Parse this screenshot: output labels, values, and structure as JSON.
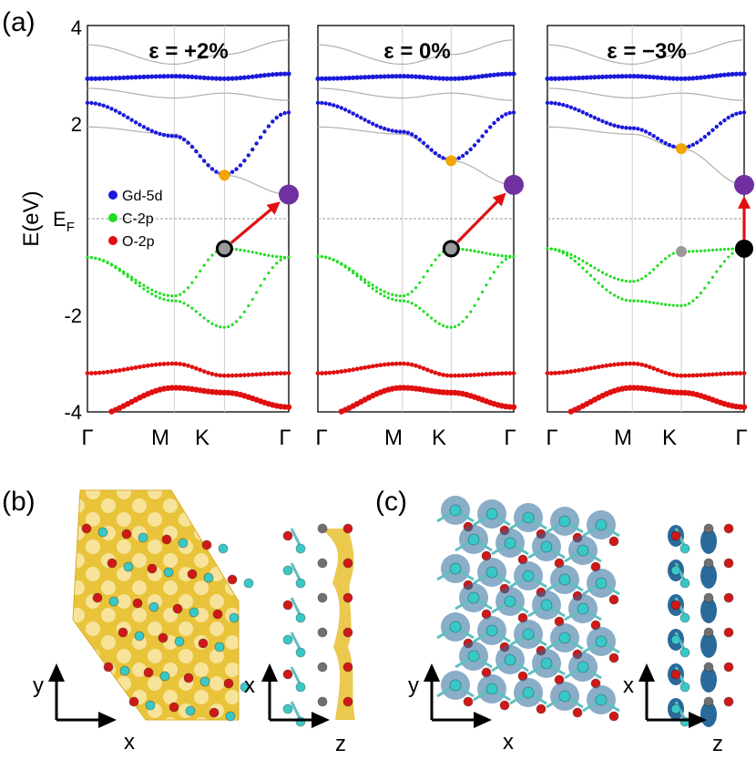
{
  "panel_labels": {
    "a": "(a)",
    "b": "(b)",
    "c": "(c)"
  },
  "y_axis": {
    "label_main": "E(eV)",
    "label_fermi_base": "E",
    "label_fermi_sub": "F"
  },
  "y_ticks": [
    {
      "value": 4,
      "label": "4"
    },
    {
      "value": 2,
      "label": "2"
    },
    {
      "value": -2,
      "label": "-2"
    },
    {
      "value": -4,
      "label": "-4"
    }
  ],
  "kpath": [
    {
      "label": "Γ",
      "pos": 0.0
    },
    {
      "label": "M",
      "pos": 0.4315
    },
    {
      "label": "K",
      "pos": 0.6806
    },
    {
      "label": "Γ",
      "pos": 1.0
    }
  ],
  "legend": [
    {
      "label": "Gd-5d",
      "color": "#1a1adb"
    },
    {
      "label": "C-2p",
      "color": "#22dd22"
    },
    {
      "label": "O-2p",
      "color": "#e01010"
    }
  ],
  "strain_panels": [
    {
      "title": "ε = +2%",
      "cbm": 0.9,
      "vbm_k": -0.62,
      "vbm_gamma": -0.8,
      "arrow": {
        "from": [
          0.68,
          -0.62
        ],
        "to": [
          1.0,
          0.5
        ]
      }
    },
    {
      "title": "ε = 0%",
      "cbm": 1.2,
      "vbm_k": -0.62,
      "vbm_gamma": -0.78,
      "arrow": {
        "from": [
          0.68,
          -0.62
        ],
        "to": [
          1.0,
          0.7
        ]
      }
    },
    {
      "title": "ε = −3%",
      "cbm": 1.45,
      "vbm_k": -0.68,
      "vbm_gamma": -0.62,
      "arrow": {
        "from": [
          1.0,
          -0.62
        ],
        "to": [
          1.0,
          0.7
        ]
      }
    }
  ],
  "chart_data": [
    {
      "type": "line",
      "title": "ε = +2%",
      "xlabel": "",
      "ylabel": "E(eV)",
      "x_ticks": [
        "Γ",
        "M",
        "K",
        "Γ"
      ],
      "ylim": [
        -4,
        4
      ],
      "series": [
        {
          "name": "Gd-5d conduction band minimum at K",
          "values": [
            0.9
          ]
        },
        {
          "name": "C-2p valence band maximum at K",
          "values": [
            -0.62
          ]
        }
      ]
    },
    {
      "type": "line",
      "title": "ε = 0%",
      "xlabel": "",
      "ylabel": "E(eV)",
      "x_ticks": [
        "Γ",
        "M",
        "K",
        "Γ"
      ],
      "ylim": [
        -4,
        4
      ],
      "series": [
        {
          "name": "Gd-5d conduction band minimum at K",
          "values": [
            1.2
          ]
        },
        {
          "name": "C-2p valence band maximum at K",
          "values": [
            -0.62
          ]
        }
      ]
    },
    {
      "type": "line",
      "title": "ε = −3%",
      "xlabel": "",
      "ylabel": "E(eV)",
      "x_ticks": [
        "Γ",
        "M",
        "K",
        "Γ"
      ],
      "ylim": [
        -4,
        4
      ],
      "series": [
        {
          "name": "Gd-5d conduction band minimum at K",
          "values": [
            1.45
          ]
        },
        {
          "name": "C-2p valence band maximum at Γ",
          "values": [
            -0.62
          ]
        }
      ]
    }
  ],
  "axes_b": [
    {
      "vertical": "y",
      "horizontal": "x"
    },
    {
      "vertical": "x",
      "horizontal": "z"
    }
  ],
  "axes_c": [
    {
      "vertical": "y",
      "horizontal": "x"
    },
    {
      "vertical": "x",
      "horizontal": "z"
    }
  ],
  "colors": {
    "gd": "#1a1adb",
    "c": "#22dd22",
    "o": "#e01010",
    "arrow": "#e01010",
    "cbm_marker": "#f5a500",
    "gamma_marker": "#7030a0",
    "gray_band": "#b0b0b0",
    "charge_yellow": "#e8c030",
    "charge_blue": "#2a6a9a",
    "atom_c": "#38c8c8",
    "atom_o": "#d01818",
    "atom_gd": "#707070"
  }
}
